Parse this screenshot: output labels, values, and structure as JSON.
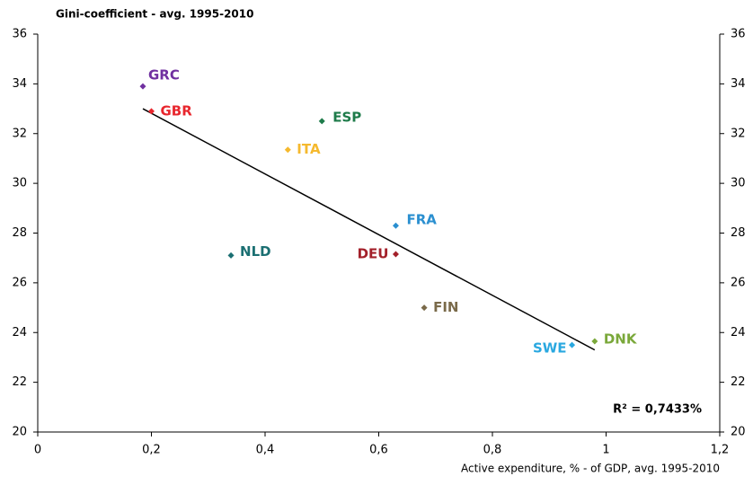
{
  "chart_data": {
    "type": "scatter",
    "title": "Gini-coefficient - avg. 1995-2010",
    "x_label": "Active expenditure, % - of  GDP, avg. 1995-2010",
    "annotation": "R² = 0,7433%",
    "xlim": [
      0,
      1.2
    ],
    "xticks": [
      0,
      {
        "value": 0.2,
        "label": "0,2"
      },
      {
        "value": 0.4,
        "label": "0,4"
      },
      {
        "value": 0.6,
        "label": "0,6"
      },
      {
        "value": 0.8,
        "label": "0,8"
      },
      1,
      {
        "value": 1.2,
        "label": "1,2"
      }
    ],
    "ylim": [
      20,
      36
    ],
    "yticks": [
      20,
      22,
      24,
      26,
      28,
      30,
      32,
      34,
      36
    ],
    "trendline": {
      "color": "#000000",
      "x": [
        0.185,
        0.98
      ],
      "values": [
        33.0,
        23.3
      ]
    },
    "series": [
      {
        "name": "GRC",
        "color": "#7030a0",
        "x": [
          0.185
        ],
        "values": [
          33.9
        ]
      },
      {
        "name": "GBR",
        "color": "#e8262d",
        "x": [
          0.2
        ],
        "values": [
          32.9
        ]
      },
      {
        "name": "ESP",
        "color": "#1e7b4a",
        "x": [
          0.5
        ],
        "values": [
          32.5
        ]
      },
      {
        "name": "ITA",
        "color": "#f5b92e",
        "x": [
          0.44
        ],
        "values": [
          31.35
        ]
      },
      {
        "name": "FRA",
        "color": "#2a8fd0",
        "x": [
          0.63
        ],
        "values": [
          28.3
        ]
      },
      {
        "name": "DEU",
        "color": "#a3202a",
        "x": [
          0.63
        ],
        "values": [
          27.15
        ]
      },
      {
        "name": "NLD",
        "color": "#1b6f72",
        "x": [
          0.34
        ],
        "values": [
          27.1
        ]
      },
      {
        "name": "FIN",
        "color": "#7a6a4a",
        "x": [
          0.68
        ],
        "values": [
          25.0
        ]
      },
      {
        "name": "SWE",
        "color": "#2aa8e0",
        "x": [
          0.94
        ],
        "values": [
          23.5
        ]
      },
      {
        "name": "DNK",
        "color": "#7aa83a",
        "x": [
          0.98
        ],
        "values": [
          23.65
        ]
      }
    ]
  }
}
